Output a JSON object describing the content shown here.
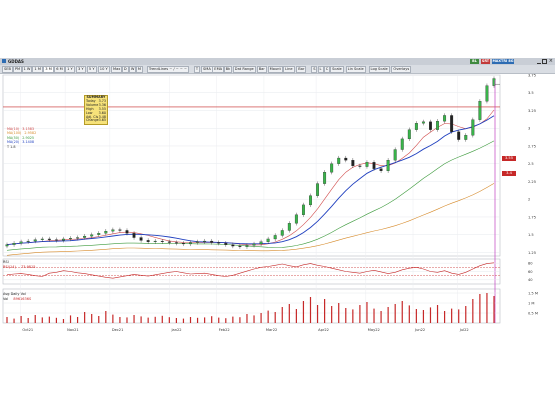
{
  "window": {
    "title": "GDDAS",
    "title_icons": [
      "minimize-icon",
      "restore-icon",
      "close-icon"
    ]
  },
  "toolbar": {
    "left_items": [
      "SEB",
      "PM",
      "1 W",
      "1 M",
      "3 M",
      "6 M",
      "1 Y",
      "3 Y",
      "5 Y",
      "10 Y",
      "Max"
    ],
    "timeframe_buttons": [
      "D",
      "W",
      "M"
    ],
    "tools": [
      "TrendLines ~ / ~ ~ ~",
      "T",
      "SMA",
      "EMA",
      "Bk",
      "Dat Range"
    ],
    "style_buttons": [
      "Bar",
      "Mount",
      "Line",
      "Bar"
    ],
    "right_tools": [
      "S",
      "L",
      "C",
      "Scale"
    ],
    "right_labels": [
      "Lin Scale",
      "Log Scale"
    ],
    "right_selects": [
      "Overlays"
    ],
    "action_buttons": [
      {
        "label": "BL",
        "color": "#3f8a3f"
      },
      {
        "label": "SRT",
        "color": "#c23a3a"
      },
      {
        "label": "MAXTRI 8G",
        "color": "#2d6cb3"
      }
    ]
  },
  "summary_box": {
    "title": "SUMMARY",
    "rows": [
      {
        "label": "Today",
        "value": "3.73"
      },
      {
        "label": "Volume",
        "value": "3.36"
      },
      {
        "label": "High",
        "value": "3.55"
      },
      {
        "label": "Low",
        "value": "3.60"
      },
      {
        "label": "Adj. Cls",
        "value": "3.48"
      },
      {
        "label": "Change",
        "value": "3.65"
      }
    ]
  },
  "legend": [
    {
      "label": "MA(10)",
      "value": "3.1583",
      "color": "#d14a4a"
    },
    {
      "label": "MA(100)",
      "value": "2.9582",
      "color": "#d68a2a"
    },
    {
      "label": "MA(50)",
      "value": "2.9025",
      "color": "#3c9a3c"
    },
    {
      "label": "MA(20)",
      "value": "3.1408",
      "color": "#1f3fbf"
    },
    {
      "label": "T 1.8",
      "value": "",
      "color": "#333333"
    }
  ],
  "price_tags": [
    {
      "label": "3.55",
      "color": "#c62828"
    },
    {
      "label": "3.4",
      "color": "#c62828"
    }
  ],
  "rsi": {
    "title": "RSI",
    "label": "RSI(14)",
    "value": "73.9815",
    "axis": [
      "80",
      "60",
      "40"
    ]
  },
  "volume": {
    "title": "Avg Daily Vol",
    "label": "Vol",
    "value": "8961636S",
    "axis": [
      "1.5 M",
      "1 M",
      "0.5 M"
    ]
  },
  "chart_data": [
    {
      "type": "candlestick",
      "title": "",
      "ylim": [
        1.2,
        3.75
      ],
      "yticks": [
        "3.75",
        "3.5",
        "3.25",
        "3",
        "2.75",
        "2.5",
        "2.25",
        "2",
        "1.75",
        "1.5",
        "1.25"
      ],
      "xticks": [
        "Oct21",
        "Nov21",
        "Dec21",
        "Jan22",
        "Feb22",
        "Mar22",
        "Apr22",
        "May22",
        "Jun22",
        "Jul22"
      ],
      "close": [
        1.36,
        1.38,
        1.4,
        1.41,
        1.43,
        1.44,
        1.43,
        1.42,
        1.44,
        1.45,
        1.46,
        1.48,
        1.5,
        1.52,
        1.55,
        1.57,
        1.56,
        1.52,
        1.46,
        1.42,
        1.4,
        1.41,
        1.4,
        1.39,
        1.38,
        1.37,
        1.39,
        1.4,
        1.41,
        1.39,
        1.38,
        1.36,
        1.34,
        1.33,
        1.35,
        1.37,
        1.4,
        1.44,
        1.49,
        1.56,
        1.66,
        1.78,
        1.92,
        2.05,
        2.22,
        2.38,
        2.5,
        2.58,
        2.55,
        2.47,
        2.46,
        2.52,
        2.43,
        2.4,
        2.55,
        2.7,
        2.85,
        2.98,
        3.07,
        3.09,
        2.98,
        3.1,
        3.18,
        2.95,
        2.84,
        2.9,
        3.12,
        3.38,
        3.6,
        3.7
      ],
      "series": [
        {
          "name": "MA(10)",
          "color": "#d14a4a"
        },
        {
          "name": "MA(20)",
          "color": "#1f3fbf"
        },
        {
          "name": "MA(50)",
          "color": "#3c9a3c"
        },
        {
          "name": "MA(100)",
          "color": "#d68a2a"
        }
      ]
    },
    {
      "type": "line",
      "title": "RSI",
      "ylim": [
        30,
        90
      ],
      "yticks": [
        "80",
        "60",
        "40"
      ],
      "values": [
        52,
        54,
        55,
        53,
        50,
        48,
        56,
        58,
        62,
        60,
        57,
        55,
        52,
        49,
        46,
        44,
        47,
        50,
        53,
        51,
        49,
        52,
        55,
        58,
        60,
        57,
        54,
        55,
        56,
        53,
        50,
        48,
        51,
        56,
        61,
        66,
        70,
        72,
        75,
        78,
        74,
        71,
        76,
        79,
        75,
        72,
        68,
        64,
        60,
        58,
        56,
        60,
        63,
        59,
        55,
        58,
        64,
        68,
        70,
        66,
        60,
        58,
        62,
        56,
        53,
        58,
        66,
        74,
        79,
        81
      ]
    },
    {
      "type": "bar",
      "title": "Avg Daily Vol",
      "ylim": [
        0,
        1.7
      ],
      "yticks": [
        "1.5 M",
        "1 M",
        "0.5 M"
      ],
      "values": [
        0.3,
        0.22,
        0.35,
        0.25,
        0.4,
        0.28,
        0.32,
        0.26,
        0.2,
        0.38,
        0.3,
        0.55,
        0.45,
        0.35,
        0.6,
        0.42,
        0.3,
        0.28,
        0.4,
        0.33,
        0.27,
        0.31,
        0.36,
        0.29,
        0.25,
        0.22,
        0.3,
        0.26,
        0.28,
        0.34,
        0.27,
        0.24,
        0.32,
        0.29,
        0.45,
        0.38,
        0.5,
        0.62,
        0.55,
        0.8,
        0.95,
        0.7,
        1.1,
        1.3,
        0.9,
        1.2,
        0.85,
        1.0,
        0.75,
        0.68,
        0.9,
        1.05,
        0.72,
        0.6,
        0.8,
        0.95,
        1.1,
        0.88,
        0.7,
        0.65,
        0.78,
        0.9,
        0.6,
        0.72,
        0.68,
        0.85,
        1.2,
        1.45,
        1.5,
        1.35
      ]
    }
  ]
}
